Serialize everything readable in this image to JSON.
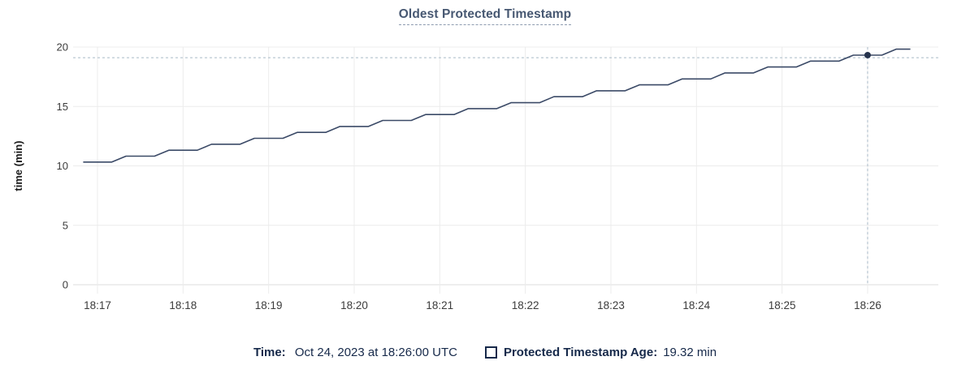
{
  "chart_data": {
    "type": "line",
    "title": "Oldest Protected Timestamp",
    "ylabel": "time (min)",
    "ylim": [
      0,
      20
    ],
    "yticks": [
      0,
      5,
      10,
      15,
      20
    ],
    "xticks": [
      "18:17",
      "18:18",
      "18:19",
      "18:20",
      "18:21",
      "18:22",
      "18:23",
      "18:24",
      "18:25",
      "18:26"
    ],
    "grid": true,
    "series_name": "Protected Timestamp Age",
    "sample_interval_seconds": 10,
    "samples": [
      [
        "18:16:50",
        10.32
      ],
      [
        "18:17:00",
        10.32
      ],
      [
        "18:17:10",
        10.32
      ],
      [
        "18:17:20",
        10.82
      ],
      [
        "18:17:30",
        10.82
      ],
      [
        "18:17:40",
        10.82
      ],
      [
        "18:17:50",
        11.32
      ],
      [
        "18:18:00",
        11.32
      ],
      [
        "18:18:10",
        11.32
      ],
      [
        "18:18:20",
        11.82
      ],
      [
        "18:18:30",
        11.82
      ],
      [
        "18:18:40",
        11.82
      ],
      [
        "18:18:50",
        12.32
      ],
      [
        "18:19:00",
        12.32
      ],
      [
        "18:19:10",
        12.32
      ],
      [
        "18:19:20",
        12.82
      ],
      [
        "18:19:30",
        12.82
      ],
      [
        "18:19:40",
        12.82
      ],
      [
        "18:19:50",
        13.32
      ],
      [
        "18:20:00",
        13.32
      ],
      [
        "18:20:10",
        13.32
      ],
      [
        "18:20:20",
        13.82
      ],
      [
        "18:20:30",
        13.82
      ],
      [
        "18:20:40",
        13.82
      ],
      [
        "18:20:50",
        14.32
      ],
      [
        "18:21:00",
        14.32
      ],
      [
        "18:21:10",
        14.32
      ],
      [
        "18:21:20",
        14.82
      ],
      [
        "18:21:30",
        14.82
      ],
      [
        "18:21:40",
        14.82
      ],
      [
        "18:21:50",
        15.32
      ],
      [
        "18:22:00",
        15.32
      ],
      [
        "18:22:10",
        15.32
      ],
      [
        "18:22:20",
        15.82
      ],
      [
        "18:22:30",
        15.82
      ],
      [
        "18:22:40",
        15.82
      ],
      [
        "18:22:50",
        16.32
      ],
      [
        "18:23:00",
        16.32
      ],
      [
        "18:23:10",
        16.32
      ],
      [
        "18:23:20",
        16.82
      ],
      [
        "18:23:30",
        16.82
      ],
      [
        "18:23:40",
        16.82
      ],
      [
        "18:23:50",
        17.32
      ],
      [
        "18:24:00",
        17.32
      ],
      [
        "18:24:10",
        17.32
      ],
      [
        "18:24:20",
        17.82
      ],
      [
        "18:24:30",
        17.82
      ],
      [
        "18:24:40",
        17.82
      ],
      [
        "18:24:50",
        18.32
      ],
      [
        "18:25:00",
        18.32
      ],
      [
        "18:25:10",
        18.32
      ],
      [
        "18:25:20",
        18.82
      ],
      [
        "18:25:30",
        18.82
      ],
      [
        "18:25:40",
        18.82
      ],
      [
        "18:25:50",
        19.32
      ],
      [
        "18:26:00",
        19.32
      ],
      [
        "18:26:10",
        19.32
      ],
      [
        "18:26:20",
        19.82
      ],
      [
        "18:26:30",
        19.82
      ]
    ],
    "hover": {
      "time": "18:26:00",
      "value": 19.32
    },
    "crosshair_y_value": 19.1,
    "legend_position": "bottom",
    "colors": {
      "line": "#3b4a67",
      "dot": "#26334d",
      "grid": "#ececec",
      "axis": "#dedede",
      "crosshair": "#a9bac8",
      "title": "#475872",
      "tick_text": "#3c3c3c",
      "axis_title_text": "#1c1c1c",
      "legend_text": "#16294a"
    }
  },
  "legend": {
    "time_label": "Time:",
    "time_value": "Oct 24, 2023 at 18:26:00 UTC",
    "series_label": "Protected Timestamp Age:",
    "series_value": "19.32 min"
  }
}
